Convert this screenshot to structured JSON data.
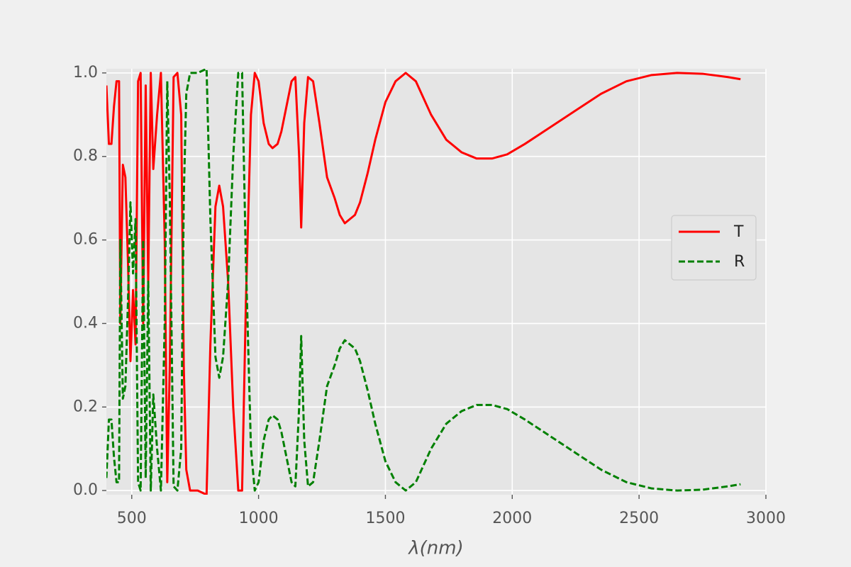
{
  "chart_data": {
    "type": "line",
    "xlabel": "λ(nm)",
    "x": [
      400,
      410,
      420,
      430,
      440,
      450,
      455,
      465,
      475,
      485,
      495,
      505,
      515,
      525,
      535,
      545,
      555,
      565,
      575,
      585,
      600,
      615,
      630,
      640,
      650,
      665,
      680,
      695,
      705,
      715,
      730,
      760,
      795,
      810,
      830,
      845,
      860,
      880,
      900,
      920,
      935,
      950,
      970,
      985,
      1000,
      1020,
      1040,
      1055,
      1075,
      1090,
      1110,
      1130,
      1145,
      1160,
      1168,
      1180,
      1195,
      1215,
      1240,
      1270,
      1300,
      1320,
      1340,
      1360,
      1380,
      1400,
      1430,
      1460,
      1500,
      1540,
      1580,
      1620,
      1680,
      1740,
      1800,
      1860,
      1920,
      1980,
      2050,
      2150,
      2250,
      2350,
      2450,
      2550,
      2650,
      2750,
      2850,
      2900
    ],
    "series": [
      {
        "name": "T",
        "color": "#ff0000",
        "linestyle": "solid",
        "values": [
          0.97,
          0.83,
          0.83,
          0.92,
          0.98,
          0.98,
          0.4,
          0.78,
          0.75,
          0.55,
          0.31,
          0.48,
          0.35,
          0.98,
          1.0,
          0.4,
          0.97,
          0.5,
          1.0,
          0.77,
          0.9,
          1.0,
          0.6,
          0.02,
          0.3,
          0.99,
          1.0,
          0.9,
          0.3,
          0.05,
          0.0,
          0.0,
          -0.01,
          0.35,
          0.68,
          0.73,
          0.68,
          0.5,
          0.2,
          0.0,
          0.0,
          0.45,
          0.9,
          1.0,
          0.98,
          0.88,
          0.83,
          0.82,
          0.83,
          0.86,
          0.92,
          0.98,
          0.99,
          0.8,
          0.63,
          0.88,
          0.99,
          0.98,
          0.88,
          0.75,
          0.7,
          0.66,
          0.64,
          0.65,
          0.66,
          0.69,
          0.76,
          0.84,
          0.93,
          0.98,
          1.0,
          0.98,
          0.9,
          0.84,
          0.81,
          0.795,
          0.795,
          0.805,
          0.83,
          0.87,
          0.91,
          0.95,
          0.98,
          0.995,
          1.0,
          0.998,
          0.99,
          0.985
        ]
      },
      {
        "name": "R",
        "color": "#008000",
        "linestyle": "dashed",
        "values": [
          0.03,
          0.17,
          0.17,
          0.08,
          0.02,
          0.02,
          0.6,
          0.22,
          0.25,
          0.45,
          0.69,
          0.52,
          0.65,
          0.02,
          0.0,
          0.6,
          0.03,
          0.5,
          0.0,
          0.23,
          0.1,
          0.0,
          0.4,
          0.98,
          0.7,
          0.01,
          0.0,
          0.1,
          0.7,
          0.95,
          1.0,
          1.0,
          1.01,
          0.65,
          0.32,
          0.27,
          0.32,
          0.5,
          0.8,
          1.0,
          1.0,
          0.55,
          0.1,
          0.0,
          0.02,
          0.12,
          0.17,
          0.18,
          0.17,
          0.14,
          0.08,
          0.02,
          0.01,
          0.2,
          0.37,
          0.12,
          0.01,
          0.02,
          0.12,
          0.25,
          0.3,
          0.34,
          0.36,
          0.35,
          0.34,
          0.31,
          0.24,
          0.16,
          0.07,
          0.02,
          0.0,
          0.02,
          0.1,
          0.16,
          0.19,
          0.205,
          0.205,
          0.195,
          0.17,
          0.13,
          0.09,
          0.05,
          0.02,
          0.005,
          0.0,
          0.002,
          0.01,
          0.015
        ]
      }
    ],
    "xlim": [
      400,
      3000
    ],
    "xticks": [
      500,
      1000,
      1500,
      2000,
      2500,
      3000
    ],
    "ylim": [
      -0.01,
      1.01
    ],
    "yticks": [
      {
        "value": 0,
        "label": "0.0"
      },
      0.2,
      0.4,
      0.6,
      0.8,
      {
        "value": 1,
        "label": "1.0"
      }
    ],
    "grid": true,
    "legend": "center right"
  }
}
